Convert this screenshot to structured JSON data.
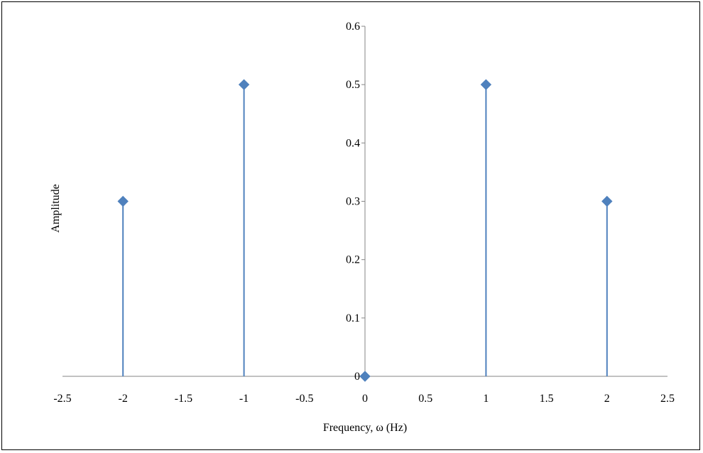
{
  "chart_data": {
    "type": "scatter",
    "style": "stem",
    "title": "",
    "xlabel": "Frequency, ω (Hz)",
    "ylabel": "Amplitude",
    "xlim": [
      -2.5,
      2.5
    ],
    "ylim": [
      0,
      0.6
    ],
    "xticks": [
      "-2.5",
      "-2",
      "-1.5",
      "-1",
      "-0.5",
      "0",
      "0.5",
      "1",
      "1.5",
      "2",
      "2.5"
    ],
    "yticks": [
      "0",
      "0.1",
      "0.2",
      "0.3",
      "0.4",
      "0.5",
      "0.6"
    ],
    "grid": false,
    "legend": "none",
    "marker": "diamond",
    "color": "#4F81BD",
    "series": [
      {
        "x": [
          -2,
          -1,
          0,
          1,
          2
        ],
        "y": [
          0.3,
          0.5,
          0,
          0.5,
          0.3
        ]
      }
    ]
  }
}
